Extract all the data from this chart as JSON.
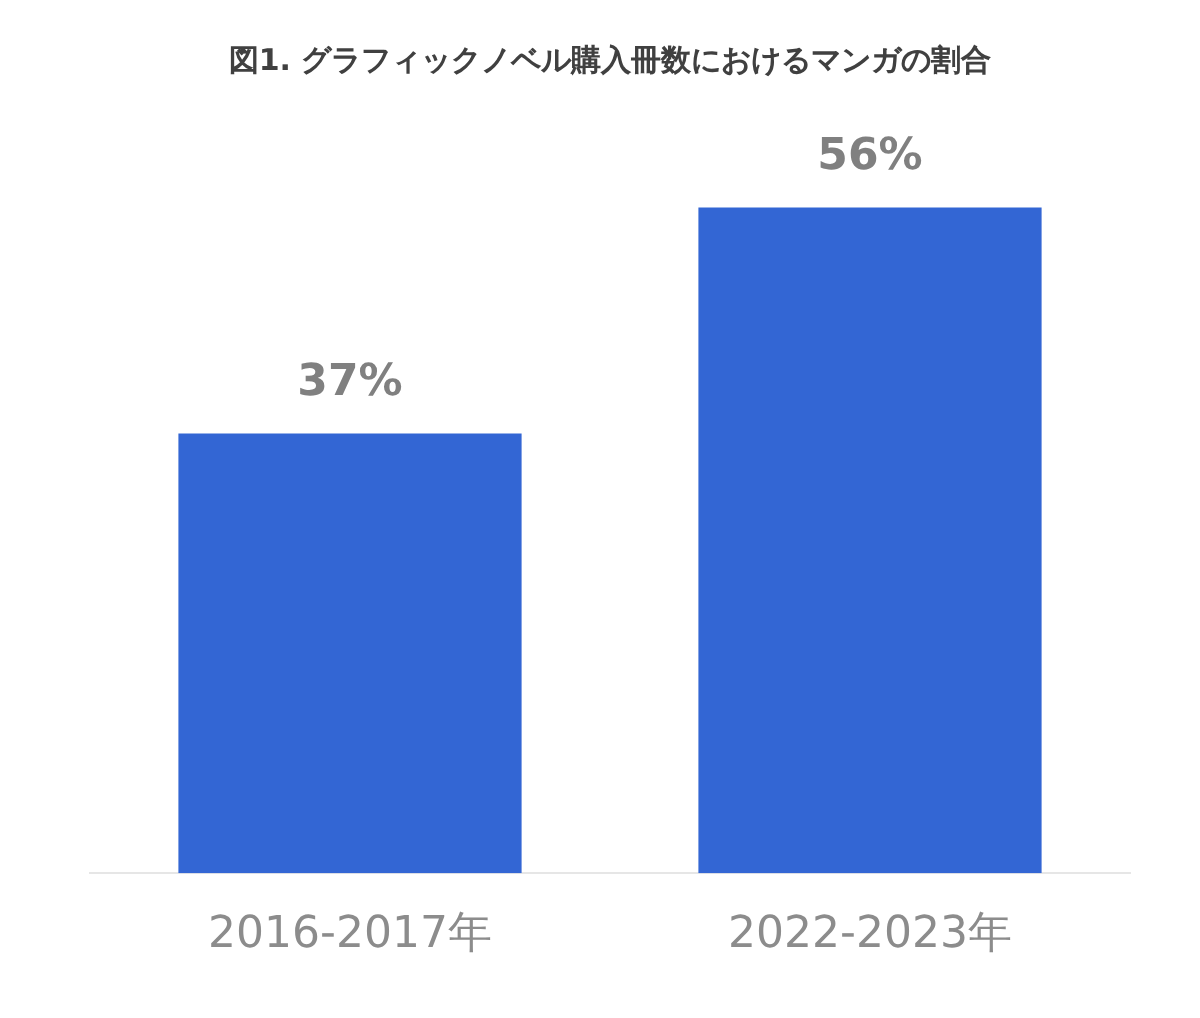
{
  "chart_data": {
    "type": "bar",
    "title": "図1. グラフィックノベル購入冊数におけるマンガの割合",
    "categories": [
      "2016-2017年",
      "2022-2023年"
    ],
    "values": [
      37,
      56
    ],
    "color": "#3366d4",
    "value_labels": [
      "37%",
      "56%"
    ]
  }
}
